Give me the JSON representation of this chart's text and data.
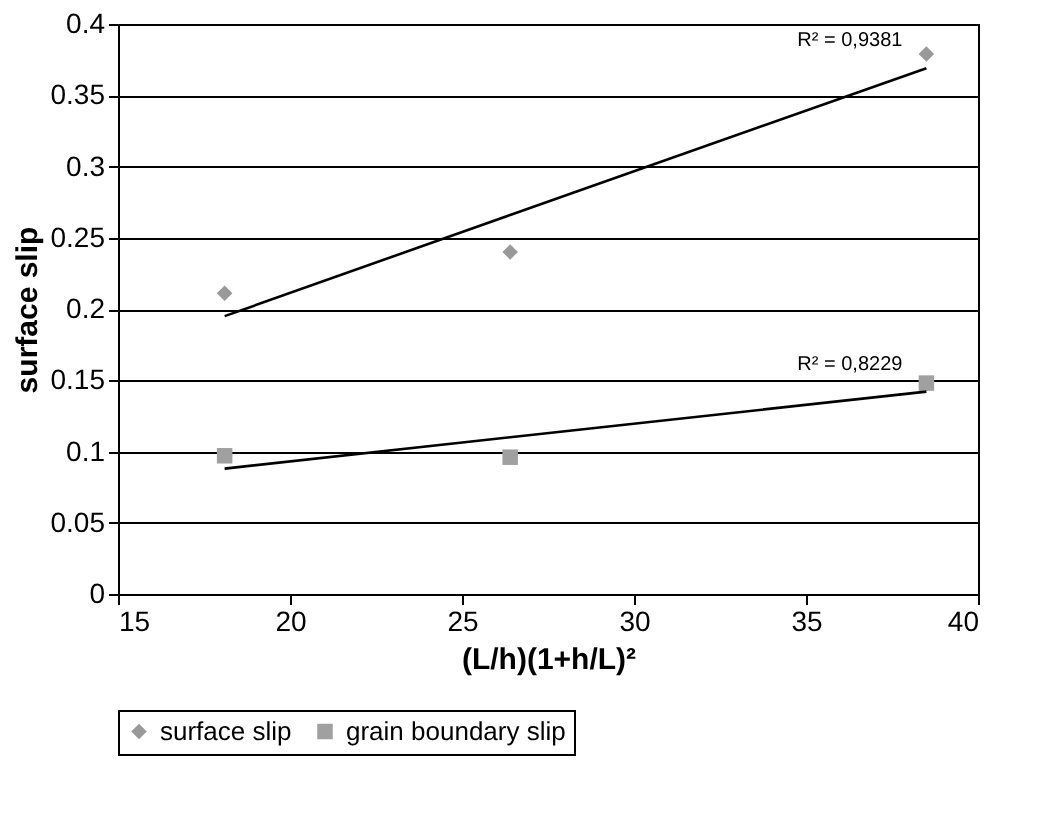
{
  "chart_data": {
    "type": "scatter",
    "xlabel": "(L/h)(1+h/L)²",
    "ylabel": "surface slip",
    "x": [
      18.1,
      26.4,
      38.5
    ],
    "series": [
      {
        "name": "surface slip",
        "color": "#999999",
        "marker": "diamond",
        "values": [
          0.211,
          0.24,
          0.379
        ]
      },
      {
        "name": "grain boundary slip",
        "color": "#a0a0a0",
        "marker": "square",
        "values": [
          0.097,
          0.096,
          0.148
        ]
      },
      {
        "type": "line",
        "color": "#000000",
        "values": [
          0.195,
          0.266,
          0.369
        ]
      },
      {
        "type": "line",
        "color": "#000000",
        "values": [
          0.088,
          0.11,
          0.142
        ]
      }
    ],
    "xlim": [
      15,
      40
    ],
    "xticks": [
      15,
      20,
      25,
      30,
      35,
      40
    ],
    "ylim": [
      0,
      0.4
    ],
    "yticks": [
      0,
      0.05,
      0.1,
      0.15,
      0.2,
      0.25,
      0.3,
      0.35,
      0.4
    ],
    "grid": "y",
    "legend": "bottom",
    "annotations": [
      "R² = 0,9381",
      "R² = 0,8229"
    ]
  }
}
